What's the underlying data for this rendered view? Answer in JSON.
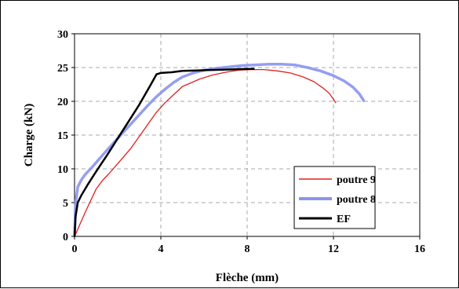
{
  "chart_data": {
    "type": "line",
    "xlabel": "Flèche (mm)",
    "ylabel": "Charge (kN)",
    "xlim": [
      0,
      16
    ],
    "ylim": [
      0,
      30
    ],
    "x_ticks": [
      "0",
      "4",
      "8",
      "12",
      "16"
    ],
    "y_ticks": [
      "0",
      "5",
      "10",
      "15",
      "20",
      "25",
      "30"
    ],
    "grid": "dashed",
    "legend_position": "bottom-right",
    "series": [
      {
        "name": "poutre 9",
        "color": "#e02020",
        "x": [
          0.0,
          0.1,
          0.25,
          0.5,
          0.75,
          1.0,
          1.3,
          1.6,
          1.9,
          2.2,
          2.6,
          3.0,
          3.4,
          3.8,
          4.2,
          4.6,
          5.0,
          5.3,
          5.8,
          6.4,
          7.0,
          7.6,
          8.2,
          8.8,
          9.4,
          10.0,
          10.6,
          11.1,
          11.5,
          11.8,
          12.0,
          12.1
        ],
        "y": [
          0.0,
          0.7,
          1.8,
          3.6,
          5.3,
          7.0,
          8.3,
          9.3,
          10.4,
          11.5,
          13.0,
          14.8,
          16.6,
          18.4,
          19.8,
          21.0,
          22.2,
          22.6,
          23.3,
          23.9,
          24.3,
          24.6,
          24.7,
          24.7,
          24.5,
          24.2,
          23.6,
          22.9,
          22.0,
          21.2,
          20.3,
          19.8
        ]
      },
      {
        "name": "poutre 8",
        "color": "#8a94f0",
        "x": [
          0.0,
          0.05,
          0.15,
          0.3,
          0.5,
          0.8,
          1.1,
          1.4,
          1.8,
          2.2,
          2.6,
          3.0,
          3.4,
          3.8,
          4.2,
          4.6,
          5.0,
          5.5,
          6.0,
          6.6,
          7.2,
          7.8,
          8.4,
          9.0,
          9.6,
          10.2,
          10.8,
          11.4,
          12.0,
          12.5,
          12.9,
          13.2,
          13.4
        ],
        "y": [
          0.0,
          5.0,
          7.3,
          8.3,
          9.2,
          10.2,
          11.3,
          12.4,
          13.8,
          15.2,
          16.6,
          18.0,
          19.4,
          20.7,
          21.8,
          22.8,
          23.6,
          24.2,
          24.6,
          24.9,
          25.1,
          25.3,
          25.4,
          25.5,
          25.5,
          25.4,
          25.0,
          24.5,
          23.8,
          23.0,
          22.1,
          21.1,
          20.1
        ]
      },
      {
        "name": "EF",
        "color": "#000000",
        "x": [
          0.0,
          0.05,
          0.15,
          0.3,
          0.6,
          1.0,
          1.5,
          2.0,
          2.5,
          3.0,
          3.5,
          3.8,
          4.0,
          4.5,
          5.0,
          6.0,
          7.0,
          8.0,
          8.3
        ],
        "y": [
          0.0,
          3.0,
          5.0,
          6.0,
          7.6,
          9.6,
          12.0,
          14.5,
          17.0,
          19.5,
          22.3,
          24.0,
          24.2,
          24.3,
          24.5,
          24.6,
          24.7,
          24.8,
          24.8
        ]
      }
    ]
  }
}
